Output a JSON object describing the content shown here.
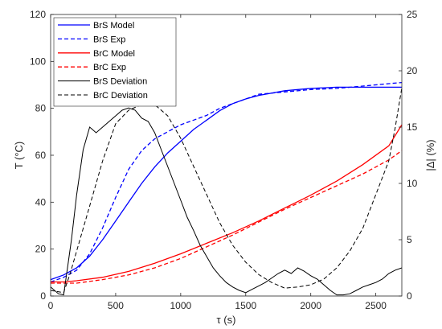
{
  "chart_data": {
    "type": "line",
    "xlabel": "τ (s)",
    "ylabel_left": "T (°C)",
    "ylabel_right": "|Δ| (%)",
    "xlim": [
      0,
      2700
    ],
    "ylim_left": [
      0,
      120
    ],
    "ylim_right": [
      0,
      25
    ],
    "xticks": [
      0,
      500,
      1000,
      1500,
      2000,
      2500
    ],
    "yticks_left": [
      0,
      20,
      40,
      60,
      80,
      100,
      120
    ],
    "yticks_right": [
      0,
      5,
      10,
      15,
      20,
      25
    ],
    "grid": false,
    "legend_position": "top-left",
    "series": [
      {
        "name": "BrS Model",
        "axis": "left",
        "color": "#0000ff",
        "dash": "solid",
        "x": [
          0,
          100,
          200,
          300,
          400,
          500,
          600,
          700,
          800,
          900,
          1000,
          1100,
          1200,
          1300,
          1400,
          1500,
          1600,
          1800,
          2000,
          2200,
          2400,
          2600,
          2700
        ],
        "y": [
          7,
          9,
          12,
          17,
          24,
          32,
          40,
          48,
          55,
          61,
          66,
          71,
          75,
          79,
          82,
          84,
          85.5,
          87.5,
          88.5,
          89,
          89,
          89,
          89
        ]
      },
      {
        "name": "BrS Exp",
        "axis": "left",
        "color": "#0000ff",
        "dash": "dashed",
        "x": [
          0,
          100,
          200,
          300,
          400,
          500,
          600,
          700,
          800,
          900,
          1000,
          1100,
          1200,
          1300,
          1400,
          1500,
          1600,
          1800,
          2000,
          2200,
          2400,
          2600,
          2700
        ],
        "y": [
          6,
          8,
          11,
          18,
          29,
          42,
          54,
          62,
          67,
          70,
          73,
          75,
          77,
          80,
          82,
          84,
          86,
          87,
          88,
          88.5,
          89.5,
          90.5,
          91
        ]
      },
      {
        "name": "BrC Model",
        "axis": "left",
        "color": "#ff0000",
        "dash": "solid",
        "x": [
          0,
          100,
          200,
          400,
          600,
          800,
          1000,
          1200,
          1400,
          1600,
          1800,
          2000,
          2200,
          2400,
          2600,
          2700
        ],
        "y": [
          6,
          6,
          6.5,
          8,
          10.5,
          14,
          18,
          22.5,
          27,
          32,
          37.5,
          43,
          49,
          56,
          64,
          73
        ]
      },
      {
        "name": "BrC Exp",
        "axis": "left",
        "color": "#ff0000",
        "dash": "dashed",
        "x": [
          0,
          100,
          200,
          400,
          600,
          800,
          1000,
          1200,
          1400,
          1600,
          1800,
          2000,
          2200,
          2400,
          2600,
          2700
        ],
        "y": [
          5.5,
          5.5,
          5.5,
          7,
          9,
          12,
          16,
          21,
          26,
          31.5,
          37,
          42,
          47,
          52,
          58,
          62
        ]
      },
      {
        "name": "BrS Deviation",
        "axis": "right",
        "color": "#000000",
        "dash": "solid",
        "x": [
          0,
          60,
          100,
          130,
          160,
          200,
          250,
          300,
          350,
          400,
          450,
          500,
          550,
          600,
          650,
          700,
          750,
          800,
          850,
          900,
          950,
          1000,
          1050,
          1100,
          1150,
          1200,
          1250,
          1300,
          1350,
          1400,
          1450,
          1500,
          1550,
          1600,
          1650,
          1700,
          1750,
          1800,
          1850,
          1900,
          1950,
          2000,
          2050,
          2100,
          2150,
          2200,
          2250,
          2300,
          2350,
          2400,
          2450,
          2500,
          2550,
          2600,
          2650,
          2700
        ],
        "y": [
          0.8,
          0.2,
          0.1,
          2.5,
          5,
          9,
          13,
          15,
          14.5,
          15,
          15.5,
          16,
          16.5,
          16.7,
          16.5,
          15.8,
          15.5,
          14.5,
          13,
          11.5,
          10,
          8.5,
          7,
          5.8,
          4.5,
          3.5,
          2.5,
          1.8,
          1.2,
          0.8,
          0.5,
          0.3,
          0.6,
          0.9,
          1.2,
          1.6,
          2.0,
          2.3,
          2.0,
          2.5,
          2.2,
          1.8,
          1.5,
          1.0,
          0.5,
          0.1,
          0.1,
          0.2,
          0.5,
          0.8,
          1.0,
          1.2,
          1.5,
          2.0,
          2.3,
          2.5
        ]
      },
      {
        "name": "BrC Deviation",
        "axis": "right",
        "color": "#000000",
        "dash": "dashed",
        "x": [
          0,
          100,
          150,
          200,
          300,
          400,
          500,
          600,
          700,
          750,
          800,
          900,
          1000,
          1100,
          1200,
          1300,
          1400,
          1500,
          1600,
          1700,
          1800,
          1900,
          2000,
          2100,
          2200,
          2300,
          2400,
          2500,
          2600,
          2650,
          2700
        ],
        "y": [
          0.5,
          0.3,
          2,
          4,
          8,
          12,
          15.3,
          16.5,
          17,
          17.2,
          17,
          16,
          14,
          11.5,
          9,
          6.5,
          4.5,
          3,
          1.9,
          1.2,
          0.7,
          0.8,
          1.0,
          1.5,
          2.5,
          4,
          6,
          9,
          12,
          15,
          18.5
        ]
      }
    ]
  }
}
